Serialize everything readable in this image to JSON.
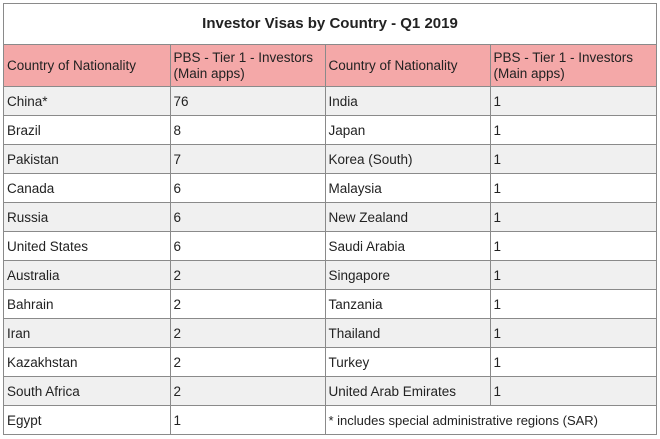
{
  "title": "Investor Visas by Country - Q1 2019",
  "headers": {
    "country": "Country of Nationality",
    "value": "PBS - Tier 1 - Investors (Main apps)"
  },
  "rows": [
    {
      "left_country": "China*",
      "left_value": "76",
      "right_country": "India",
      "right_value": "1"
    },
    {
      "left_country": "Brazil",
      "left_value": "8",
      "right_country": "Japan",
      "right_value": "1"
    },
    {
      "left_country": "Pakistan",
      "left_value": "7",
      "right_country": "Korea (South)",
      "right_value": "1"
    },
    {
      "left_country": "Canada",
      "left_value": "6",
      "right_country": "Malaysia",
      "right_value": "1"
    },
    {
      "left_country": "Russia",
      "left_value": "6",
      "right_country": "New Zealand",
      "right_value": "1"
    },
    {
      "left_country": "United States",
      "left_value": "6",
      "right_country": "Saudi Arabia",
      "right_value": "1"
    },
    {
      "left_country": "Australia",
      "left_value": "2",
      "right_country": "Singapore",
      "right_value": "1"
    },
    {
      "left_country": "Bahrain",
      "left_value": "2",
      "right_country": "Tanzania",
      "right_value": "1"
    },
    {
      "left_country": "Iran",
      "left_value": "2",
      "right_country": "Thailand",
      "right_value": "1"
    },
    {
      "left_country": "Kazakhstan",
      "left_value": "2",
      "right_country": "Turkey",
      "right_value": "1"
    },
    {
      "left_country": "South Africa",
      "left_value": "2",
      "right_country": "United Arab Emirates",
      "right_value": "1"
    }
  ],
  "last_row": {
    "left_country": "Egypt",
    "left_value": "1",
    "note": "* includes special administrative regions (SAR)"
  },
  "colors": {
    "header_bg": "#f4a8a8",
    "stripe_bg": "#f0f0f0",
    "border": "#8a8a8a"
  }
}
